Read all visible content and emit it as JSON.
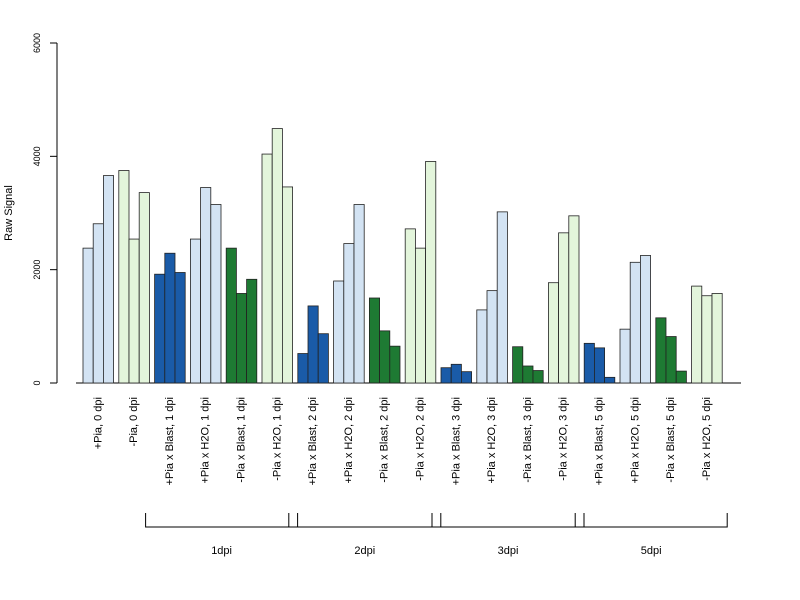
{
  "chart_data": {
    "type": "bar",
    "title": "",
    "xlabel": "",
    "ylabel": "Raw Signal",
    "ylim": [
      0,
      6000
    ],
    "y_ticks": [
      0,
      2000,
      4000,
      6000
    ],
    "grid": false,
    "legend": "none",
    "bars_per_group": 3,
    "categories": [
      "+Pia, 0 dpi",
      "-Pia, 0 dpi",
      "+Pia x Blast, 1 dpi",
      "+Pia x H2O, 1 dpi",
      "-Pia x Blast, 1 dpi",
      "-Pia x H2O, 1 dpi",
      "+Pia x Blast, 2 dpi",
      "+Pia x H2O, 2 dpi",
      "-Pia x Blast, 2 dpi",
      "-Pia x H2O, 2 dpi",
      "+Pia x Blast, 3 dpi",
      "+Pia x H2O, 3 dpi",
      "-Pia x Blast, 3 dpi",
      "-Pia x H2O, 3 dpi",
      "+Pia x Blast, 5 dpi",
      "+Pia x H2O, 5 dpi",
      "-Pia x Blast, 5 dpi",
      "-Pia x H2O, 5 dpi"
    ],
    "values": [
      [
        2380,
        2810,
        3660
      ],
      [
        3750,
        2540,
        3360
      ],
      [
        1920,
        2290,
        1950
      ],
      [
        2540,
        3450,
        3150
      ],
      [
        2380,
        1580,
        1830
      ],
      [
        4040,
        4490,
        3460
      ],
      [
        520,
        1360,
        870
      ],
      [
        1800,
        2460,
        3150
      ],
      [
        1500,
        920,
        650
      ],
      [
        2720,
        2380,
        3910
      ],
      [
        270,
        330,
        200
      ],
      [
        1290,
        1630,
        3020
      ],
      [
        640,
        300,
        220
      ],
      [
        1770,
        2650,
        2950
      ],
      [
        700,
        620,
        100
      ],
      [
        950,
        2130,
        2250
      ],
      [
        1150,
        820,
        210
      ],
      [
        1710,
        1540,
        1580
      ]
    ],
    "group_colors": [
      "#d3e3f3",
      "#e3f5db",
      "#1a5ba8",
      "#d3e3f3",
      "#1e7a33",
      "#e3f5db",
      "#1a5ba8",
      "#d3e3f3",
      "#1e7a33",
      "#e3f5db",
      "#1a5ba8",
      "#d3e3f3",
      "#1e7a33",
      "#e3f5db",
      "#1a5ba8",
      "#d3e3f3",
      "#1e7a33",
      "#e3f5db"
    ],
    "timepoint_brackets": [
      {
        "label": "1dpi",
        "from_category": 2,
        "to_category": 5
      },
      {
        "label": "2dpi",
        "from_category": 6,
        "to_category": 9
      },
      {
        "label": "3dpi",
        "from_category": 10,
        "to_category": 13
      },
      {
        "label": "5dpi",
        "from_category": 14,
        "to_category": 17
      }
    ]
  }
}
